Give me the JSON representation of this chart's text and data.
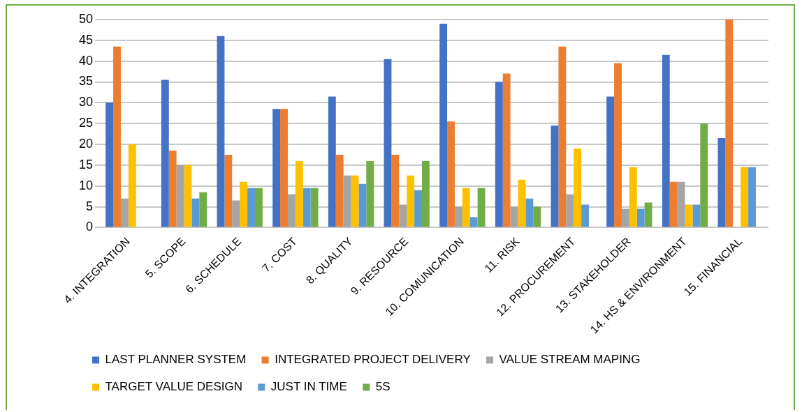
{
  "chart_data": {
    "type": "bar",
    "categories": [
      "4. INTEGRATION",
      "5. SCOPE",
      "6. SCHEDULE",
      "7. COST",
      "8. QUALITY",
      "9. RESOURCE",
      "10. COMUNICATION",
      "11. RISK",
      "12. PROCUREMENT",
      "13. STAKEHOLDER",
      "14. HS & ENVIRONMENT",
      "15. FINANCIAL"
    ],
    "series": [
      {
        "name": "LAST PLANNER SYSTEM",
        "color": "#4472c4",
        "values": [
          30,
          35.5,
          46,
          28.5,
          31.5,
          40.5,
          49,
          35,
          24.5,
          31.5,
          41.5,
          21.5
        ]
      },
      {
        "name": "INTEGRATED PROJECT DELIVERY",
        "color": "#ed7d31",
        "values": [
          43.5,
          18.5,
          17.5,
          28.5,
          17.5,
          17.5,
          25.5,
          37,
          43.5,
          39.5,
          11,
          50
        ]
      },
      {
        "name": "VALUE STREAM MAPING",
        "color": "#a5a5a5",
        "values": [
          7,
          15,
          6.5,
          8,
          12.5,
          5.5,
          5,
          5,
          8,
          4.5,
          11,
          0
        ]
      },
      {
        "name": "TARGET VALUE DESIGN",
        "color": "#ffc000",
        "values": [
          20,
          15,
          11,
          16,
          12.5,
          12.5,
          9.5,
          11.5,
          19,
          14.5,
          5.5,
          14.5
        ]
      },
      {
        "name": "JUST IN TIME",
        "color": "#5b9bd5",
        "values": [
          0,
          7,
          9.5,
          9.5,
          10.5,
          9,
          2.5,
          7,
          5.5,
          4.5,
          5.5,
          14.5
        ]
      },
      {
        "name": "5S",
        "color": "#70ad47",
        "values": [
          0,
          8.5,
          9.5,
          9.5,
          16,
          16,
          9.5,
          5,
          0,
          6,
          25,
          0
        ]
      }
    ],
    "ylim": [
      0,
      50
    ],
    "yticks": [
      0,
      5,
      10,
      15,
      20,
      25,
      30,
      35,
      40,
      45,
      50
    ],
    "grid": "y",
    "legend": "bottom"
  }
}
